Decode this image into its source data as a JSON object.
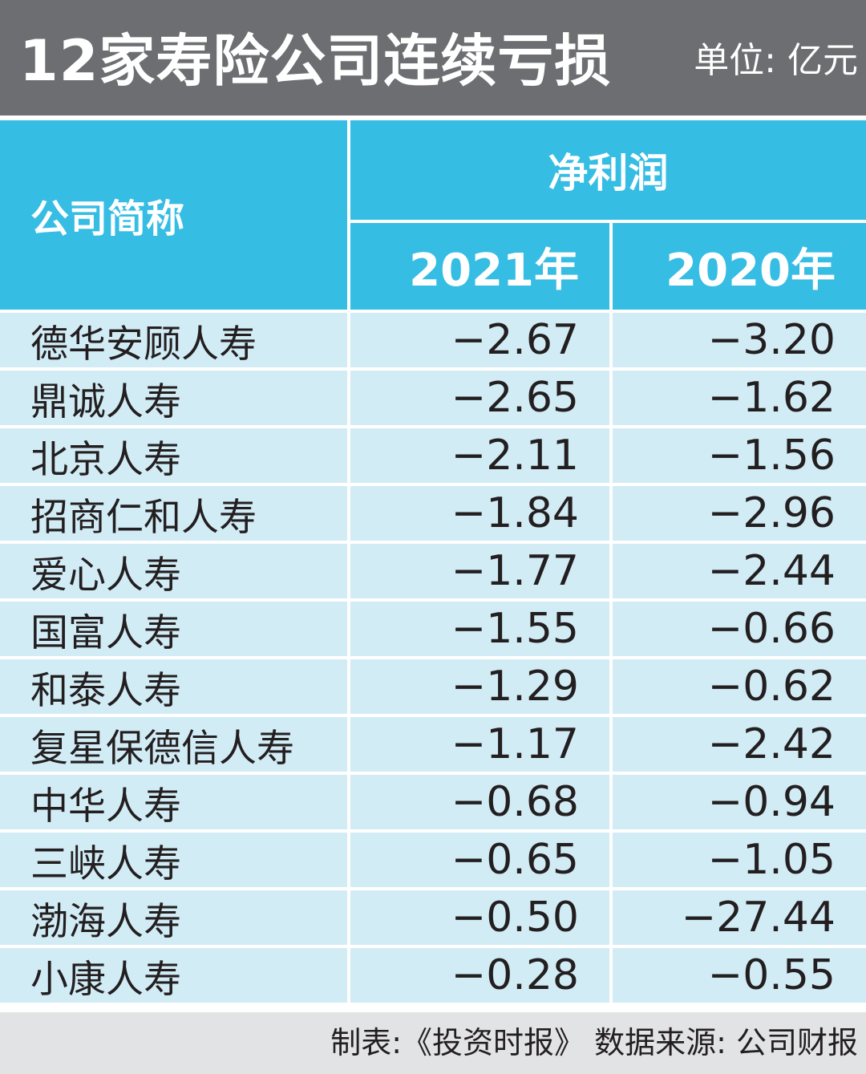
{
  "chart_data": {
    "type": "table",
    "title": "12家寿险公司连续亏损",
    "unit": "单位: 亿元",
    "header": {
      "company": "公司简称",
      "group": "净利润",
      "years": [
        "2021年",
        "2020年"
      ]
    },
    "rows": [
      {
        "name": "德华安顾人寿",
        "v2021": "−2.67",
        "v2020": "−3.20"
      },
      {
        "name": "鼎诚人寿",
        "v2021": "−2.65",
        "v2020": "−1.62"
      },
      {
        "name": "北京人寿",
        "v2021": "−2.11",
        "v2020": "−1.56"
      },
      {
        "name": "招商仁和人寿",
        "v2021": "−1.84",
        "v2020": "−2.96"
      },
      {
        "name": "爱心人寿",
        "v2021": "−1.77",
        "v2020": "−2.44"
      },
      {
        "name": "国富人寿",
        "v2021": "−1.55",
        "v2020": "−0.66"
      },
      {
        "name": "和泰人寿",
        "v2021": "−1.29",
        "v2020": "−0.62"
      },
      {
        "name": "复星保德信人寿",
        "v2021": "−1.17",
        "v2020": "−2.42"
      },
      {
        "name": "中华人寿",
        "v2021": "−0.68",
        "v2020": "−0.94"
      },
      {
        "name": "三峡人寿",
        "v2021": "−0.65",
        "v2020": "−1.05"
      },
      {
        "name": "渤海人寿",
        "v2021": "−0.50",
        "v2020": "−27.44"
      },
      {
        "name": "小康人寿",
        "v2021": "−0.28",
        "v2020": "−0.55"
      }
    ],
    "footer": "制表:《投资时报》 数据来源: 公司财报"
  },
  "colors": {
    "header_band": "#6d6e71",
    "table_header": "#36bde3",
    "table_row": "#d2ecf6",
    "footer_band": "#e2e3e4"
  }
}
